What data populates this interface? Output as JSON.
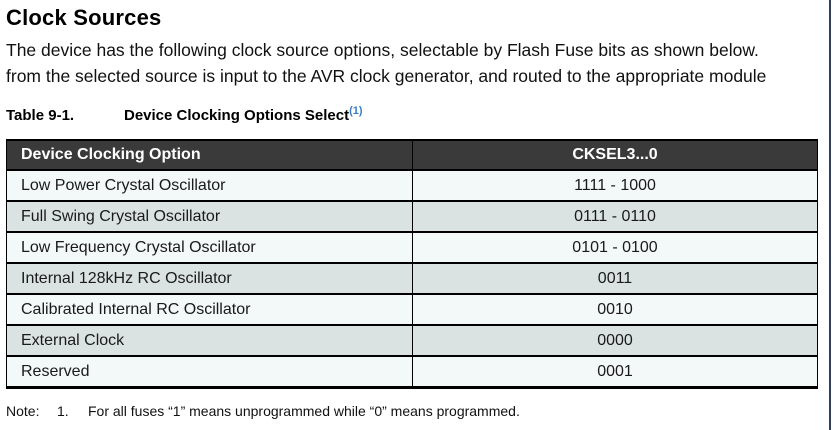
{
  "page": {
    "title": "Clock Sources",
    "paragraph_line1": "The device has the following clock source options, selectable by Flash Fuse bits as shown below.",
    "paragraph_line2": "from the selected source is input to the AVR clock generator, and routed to the appropriate module"
  },
  "table": {
    "caption_label": "Table 9-1.",
    "caption_title": "Device Clocking Options Select",
    "caption_footnote_ref": "(1)",
    "columns": [
      "Device Clocking Option",
      "CKSEL3...0"
    ],
    "rows": [
      {
        "option": "Low Power Crystal Oscillator",
        "cksel": "1111 - 1000"
      },
      {
        "option": "Full Swing Crystal Oscillator",
        "cksel": "0111 - 0110"
      },
      {
        "option": "Low Frequency Crystal Oscillator",
        "cksel": "0101 - 0100"
      },
      {
        "option": "Internal 128kHz RC Oscillator",
        "cksel": "0011"
      },
      {
        "option": "Calibrated Internal RC Oscillator",
        "cksel": "0010"
      },
      {
        "option": "External Clock",
        "cksel": "0000"
      },
      {
        "option": "Reserved",
        "cksel": "0001"
      }
    ]
  },
  "note": {
    "label": "Note:",
    "number": "1.",
    "text": "For all fuses “1” means unprogrammed while “0” means programmed."
  },
  "colors": {
    "header_bg": "#3a3a3a",
    "row_light": "#f3f8f8",
    "row_shaded": "#dbe2e2",
    "footnote_blue": "#3b7dc4",
    "border": "#000000",
    "page_edge_line": "#2f3f5c"
  }
}
